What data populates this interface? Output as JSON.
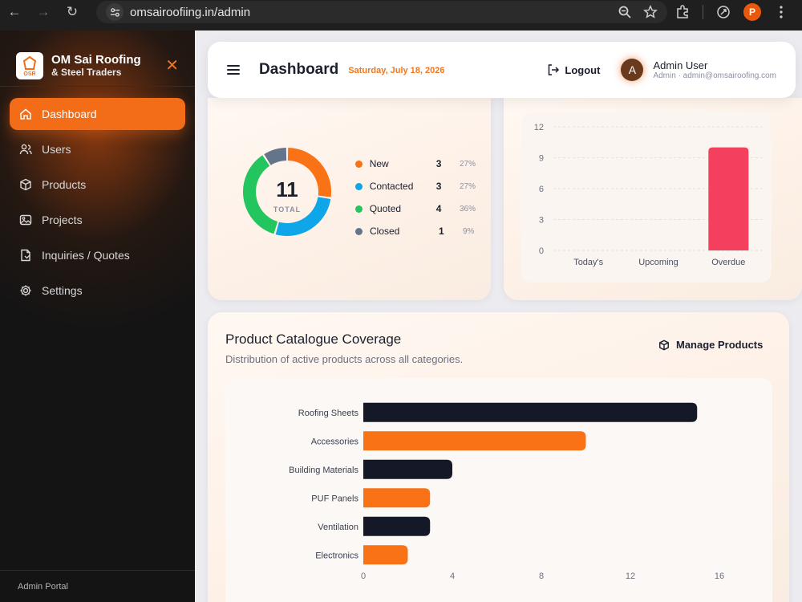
{
  "browser": {
    "url": "omsairoofiing.in/admin",
    "profile_initial": "P"
  },
  "sidebar": {
    "brand_name": "OM Sai Roofing",
    "brand_sub": "& Steel Traders",
    "logo_text": "OSR",
    "items": [
      {
        "label": "Dashboard",
        "icon": "home-icon",
        "active": true
      },
      {
        "label": "Users",
        "icon": "users-icon"
      },
      {
        "label": "Products",
        "icon": "box-icon"
      },
      {
        "label": "Projects",
        "icon": "image-icon"
      },
      {
        "label": "Inquiries / Quotes",
        "icon": "document-icon"
      },
      {
        "label": "Settings",
        "icon": "gear-icon"
      }
    ],
    "footer": "Admin Portal"
  },
  "header": {
    "title": "Dashboard",
    "date": "Saturday, July 18, 2026",
    "logout_label": "Logout",
    "user_name": "Admin User",
    "user_role": "Admin · admin@omsairoofing.com",
    "avatar_initial": "A"
  },
  "inquiries": {
    "total": "11",
    "total_label": "TOTAL",
    "legend": [
      {
        "label": "New",
        "count": "3",
        "pct": "27%",
        "color": "#f97316"
      },
      {
        "label": "Contacted",
        "count": "3",
        "pct": "27%",
        "color": "#0ea5e9"
      },
      {
        "label": "Quoted",
        "count": "4",
        "pct": "36%",
        "color": "#22c55e"
      },
      {
        "label": "Closed",
        "count": "1",
        "pct": "9%",
        "color": "#64748b"
      }
    ]
  },
  "catalogue": {
    "title": "Product Catalogue Coverage",
    "subtitle": "Distribution of active products across all categories.",
    "manage_label": "Manage Products"
  },
  "chart_data": [
    {
      "type": "pie",
      "categories": [
        "New",
        "Contacted",
        "Quoted",
        "Closed"
      ],
      "values": [
        3,
        3,
        4,
        1
      ],
      "colors": [
        "#f97316",
        "#0ea5e9",
        "#22c55e",
        "#64748b"
      ]
    },
    {
      "type": "bar",
      "categories": [
        "Today's",
        "Upcoming",
        "Overdue"
      ],
      "values": [
        0,
        0,
        10
      ],
      "ylim": [
        0,
        12
      ],
      "yticks": [
        0,
        3,
        6,
        9,
        12
      ],
      "color": "#f43f5e",
      "grid": true
    },
    {
      "type": "bar",
      "orientation": "horizontal",
      "categories": [
        "Roofing Sheets",
        "Accessories",
        "Building Materials",
        "PUF Panels",
        "Ventilation",
        "Electronics"
      ],
      "values": [
        15,
        10,
        4,
        3,
        3,
        2
      ],
      "colors": [
        "#141827",
        "#f97316",
        "#141827",
        "#f97316",
        "#141827",
        "#f97316"
      ],
      "xlim": [
        0,
        16
      ],
      "xticks": [
        0,
        4,
        8,
        12,
        16
      ]
    }
  ]
}
